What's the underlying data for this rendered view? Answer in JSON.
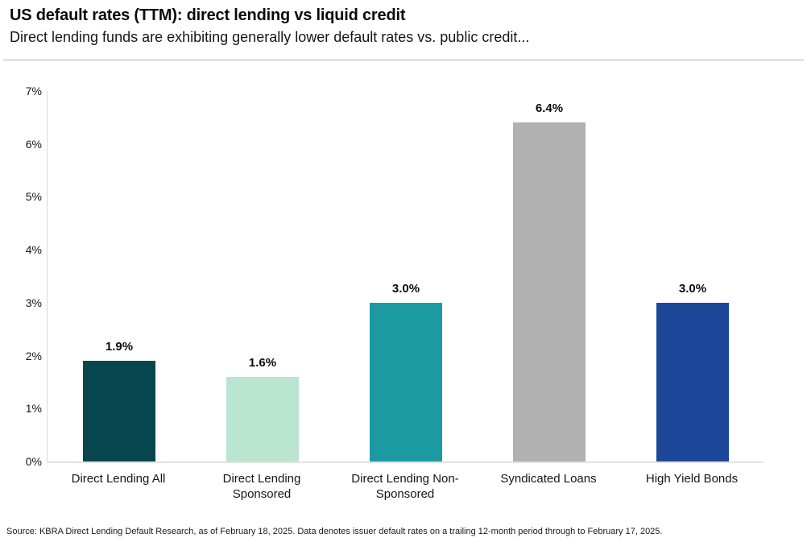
{
  "header": {
    "title": "US default rates (TTM): direct lending vs liquid credit",
    "subtitle": "Direct lending funds are exhibiting generally lower default rates vs. public credit..."
  },
  "footer": {
    "source": "Source: KBRA Direct Lending Default Research, as of February 18, 2025. Data denotes issuer default rates on a trailing 12-month period through to February 17, 2025."
  },
  "chart_data": {
    "type": "bar",
    "title": "US default rates (TTM): direct lending vs liquid credit",
    "subtitle": "Direct lending funds are exhibiting generally lower default rates vs. public credit...",
    "categories": [
      "Direct Lending All",
      "Direct Lending\nSponsored",
      "Direct Lending Non-\nSponsored",
      "Syndicated Loans",
      "High Yield Bonds"
    ],
    "values": [
      1.9,
      1.6,
      3.0,
      6.4,
      3.0
    ],
    "data_labels": [
      "1.9%",
      "1.6%",
      "3.0%",
      "6.4%",
      "3.0%"
    ],
    "bar_colors": [
      "#07454F",
      "#BAE5D1",
      "#1B9BA1",
      "#B1B1B1",
      "#1C4798"
    ],
    "xlabel": "",
    "ylabel": "",
    "ylim": [
      0,
      7
    ],
    "yticks": [
      "0%",
      "1%",
      "2%",
      "3%",
      "4%",
      "5%",
      "6%",
      "7%"
    ],
    "grid": false,
    "legend": false,
    "axis_color": "#d8d8d8"
  }
}
